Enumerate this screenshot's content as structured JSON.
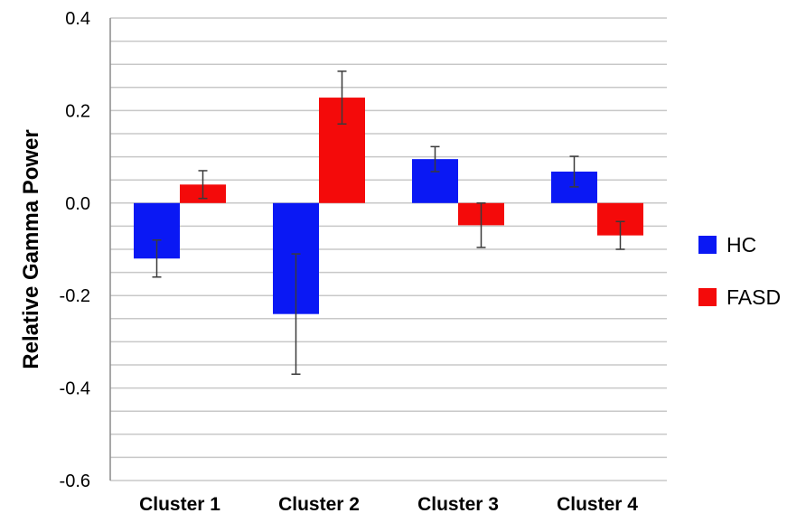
{
  "chart_data": {
    "type": "bar",
    "title": "",
    "xlabel": "",
    "ylabel": "Relative Gamma Power",
    "ylim": [
      -0.6,
      0.4
    ],
    "yticks": [
      0.4,
      0.2,
      0.0,
      -0.2,
      -0.4,
      -0.6
    ],
    "ytick_labels": [
      "0.4",
      "0.2",
      "0.0",
      "-0.2",
      "-0.4",
      "-0.6"
    ],
    "minor_gridline_step": 0.05,
    "grid": true,
    "legend_position": "right",
    "categories": [
      "Cluster 1",
      "Cluster 2",
      "Cluster 3",
      "Cluster 4"
    ],
    "series": [
      {
        "name": "HC",
        "color": "#0a18f4",
        "values": [
          -0.12,
          -0.24,
          0.095,
          0.068
        ],
        "error": [
          0.04,
          0.13,
          0.027,
          0.033
        ]
      },
      {
        "name": "FASD",
        "color": "#f40a0a",
        "values": [
          0.04,
          0.228,
          -0.048,
          -0.07
        ],
        "error": [
          0.03,
          0.057,
          0.048,
          0.03
        ]
      }
    ]
  }
}
